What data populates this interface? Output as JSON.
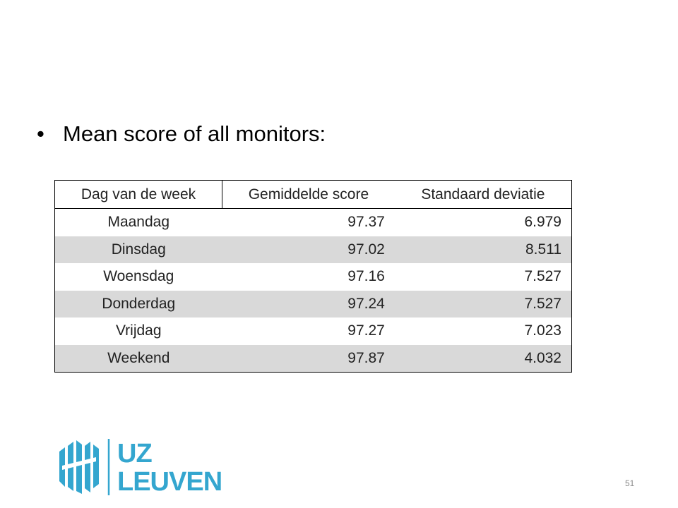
{
  "bullet": "Mean score of all monitors:",
  "table": {
    "header": [
      "Dag van de week",
      "Gemiddelde score",
      "Standaard deviatie"
    ],
    "rows": [
      [
        "Maandag",
        "97.37",
        "6.979"
      ],
      [
        "Dinsdag",
        "97.02",
        "8.511"
      ],
      [
        "Woensdag",
        "97.16",
        "7.527"
      ],
      [
        "Donderdag",
        "97.24",
        "7.527"
      ],
      [
        "Vrijdag",
        "97.27",
        "7.023"
      ],
      [
        "Weekend",
        "97.87",
        "4.032"
      ]
    ]
  },
  "logo": {
    "line1": "UZ",
    "line2": "LEUVEN"
  },
  "page_number": "51"
}
